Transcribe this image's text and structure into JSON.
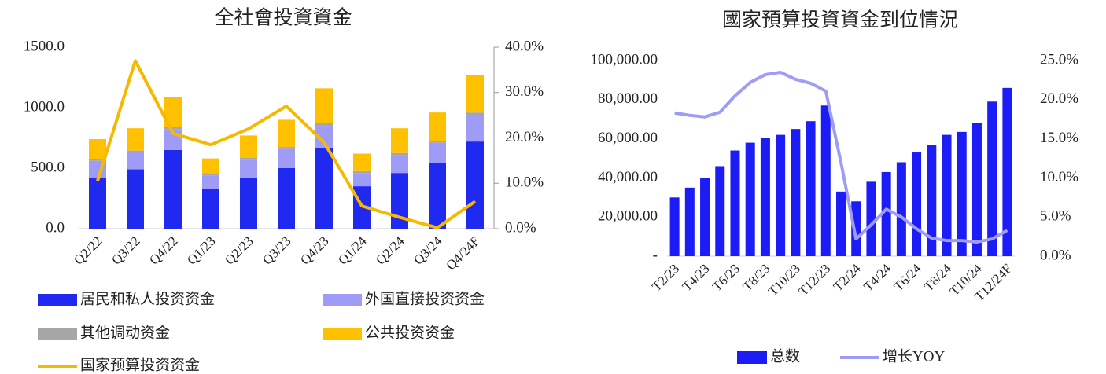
{
  "chart_data": [
    {
      "type": "bar",
      "title": "全社會投資資金",
      "stacked": true,
      "legend": "bottom",
      "categories": [
        "Q2/22",
        "Q3/22",
        "Q4/22",
        "Q1/23",
        "Q2/23",
        "Q3/23",
        "Q4/23",
        "Q1/24",
        "Q2/24",
        "Q3/24",
        "Q4/24F"
      ],
      "series": [
        {
          "name": "居民和私人投资资金",
          "color": "#2029f0",
          "values": [
            420,
            490,
            650,
            330,
            420,
            500,
            670,
            350,
            460,
            540,
            720
          ]
        },
        {
          "name": "外国直接投资资金",
          "color": "#9e9cf7",
          "values": [
            140,
            140,
            170,
            110,
            150,
            160,
            180,
            110,
            150,
            170,
            210
          ]
        },
        {
          "name": "其他调动资金",
          "color": "#a6a6a6",
          "values": [
            15,
            15,
            20,
            10,
            15,
            15,
            25,
            15,
            15,
            15,
            30
          ]
        },
        {
          "name": "公共投资资金",
          "color": "#ffc000",
          "values": [
            165,
            185,
            250,
            130,
            185,
            225,
            285,
            145,
            205,
            235,
            310
          ]
        },
        {
          "name": "国家预算投资资金",
          "type": "line",
          "axis": "y2",
          "color": "#f7b900",
          "values": [
            10.5,
            37,
            21,
            18.5,
            22,
            27,
            19,
            5,
            2.5,
            0.2,
            6
          ]
        }
      ],
      "ylim": [
        0,
        1500
      ],
      "yticks": [
        {
          "value": 0,
          "label": "0.0"
        },
        {
          "value": 500,
          "label": "500.0"
        },
        {
          "value": 1000,
          "label": "1000.0"
        },
        {
          "value": 1500,
          "label": "1500.0"
        }
      ],
      "y2lim": [
        0,
        40
      ],
      "y2ticks": [
        {
          "value": 0,
          "label": "0.0%"
        },
        {
          "value": 10,
          "label": "10.0%"
        },
        {
          "value": 20,
          "label": "20.0%"
        },
        {
          "value": 30,
          "label": "30.0%"
        },
        {
          "value": 40,
          "label": "40.0%"
        }
      ]
    },
    {
      "type": "bar",
      "title": "國家預算投資資金到位情況",
      "legend": "bottom",
      "categories": [
        "T2/23",
        null,
        "T4/23",
        null,
        "T6/23",
        null,
        "T8/23",
        null,
        "T10/23",
        null,
        "T12/23",
        null,
        "T2/24",
        null,
        "T4/24",
        null,
        "T6/24",
        null,
        "T8/24",
        null,
        "T10/24",
        null,
        "T12/24F"
      ],
      "series": [
        {
          "name": "总数",
          "color": "#1c1cf7",
          "values": [
            30000,
            35000,
            40000,
            46000,
            54000,
            58000,
            60500,
            62000,
            65000,
            69000,
            77000,
            33000,
            28000,
            38000,
            43000,
            48000,
            53000,
            57000,
            62000,
            63500,
            68000,
            79000,
            86000
          ]
        },
        {
          "name": "增长YOY",
          "type": "line",
          "axis": "y2",
          "color": "#9e9cf7",
          "values": [
            18.3,
            18,
            17.8,
            18.4,
            20.5,
            22.2,
            23.2,
            23.5,
            22.6,
            22.1,
            21.1,
            12,
            2.2,
            4,
            6,
            5,
            3.5,
            2.3,
            2,
            2,
            1.8,
            2.2,
            3.3
          ]
        }
      ],
      "ylim": [
        0,
        100000
      ],
      "yticks": [
        {
          "value": 0,
          "label": "-"
        },
        {
          "value": 20000,
          "label": "20,000.00"
        },
        {
          "value": 40000,
          "label": "40,000.00"
        },
        {
          "value": 60000,
          "label": "60,000.00"
        },
        {
          "value": 80000,
          "label": "80,000.00"
        },
        {
          "value": 100000,
          "label": "100,000.00"
        }
      ],
      "y2lim": [
        0,
        25
      ],
      "y2ticks": [
        {
          "value": 0,
          "label": "0.0%"
        },
        {
          "value": 5,
          "label": "5.0%"
        },
        {
          "value": 10,
          "label": "10.0%"
        },
        {
          "value": 15,
          "label": "15.0%"
        },
        {
          "value": 20,
          "label": "20.0%"
        },
        {
          "value": 25,
          "label": "25.0%"
        }
      ]
    }
  ]
}
